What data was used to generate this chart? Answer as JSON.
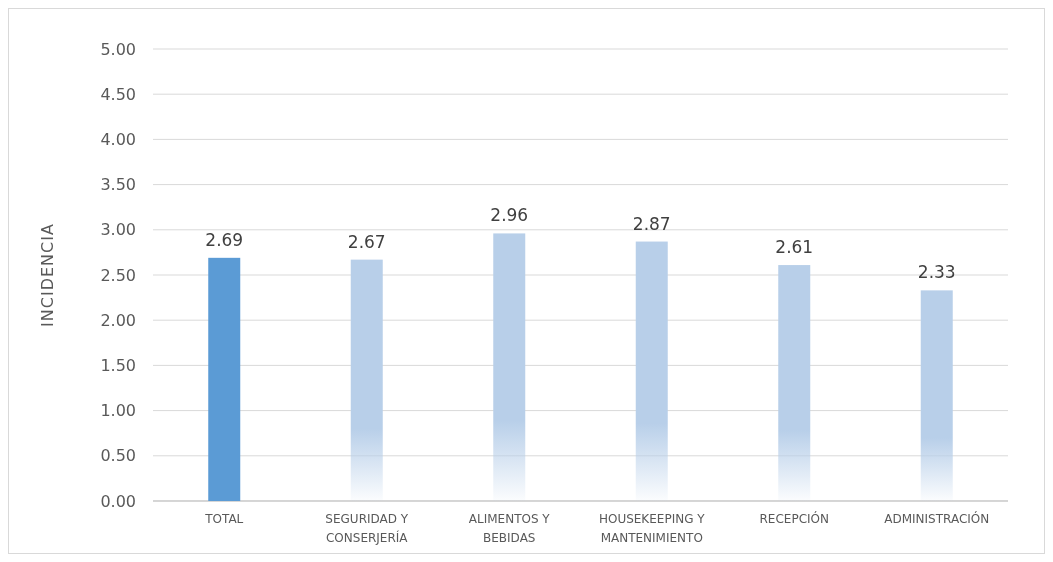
{
  "chart_data": {
    "type": "bar",
    "ylabel": "INCIDENCIA",
    "categories": [
      "TOTAL",
      "SEGURIDAD Y CONSERJERÍA",
      "ALIMENTOS Y BEBIDAS",
      "HOUSEKEEPING Y MANTENIMIENTO",
      "RECEPCIÓN",
      "ADMINISTRACIÓN"
    ],
    "values": [
      2.69,
      2.67,
      2.96,
      2.87,
      2.61,
      2.33
    ],
    "colors": [
      "#5b9bd5",
      "#b8cfe9",
      "#b8cfe9",
      "#b8cfe9",
      "#b8cfe9",
      "#b8cfe9"
    ],
    "ylim": [
      0,
      5
    ],
    "yticks": [
      {
        "value": 0,
        "label": "0.00"
      },
      {
        "value": 0.5,
        "label": "0.50"
      },
      {
        "value": 1,
        "label": "1.00"
      },
      {
        "value": 1.5,
        "label": "1.50"
      },
      {
        "value": 2,
        "label": "2.00"
      },
      {
        "value": 2.5,
        "label": "2.50"
      },
      {
        "value": 3,
        "label": "3.00"
      },
      {
        "value": 3.5,
        "label": "3.50"
      },
      {
        "value": 4,
        "label": "4.00"
      },
      {
        "value": 4.5,
        "label": "4.50"
      },
      {
        "value": 5,
        "label": "5.00"
      }
    ],
    "grid": "y",
    "data_labels": true
  }
}
